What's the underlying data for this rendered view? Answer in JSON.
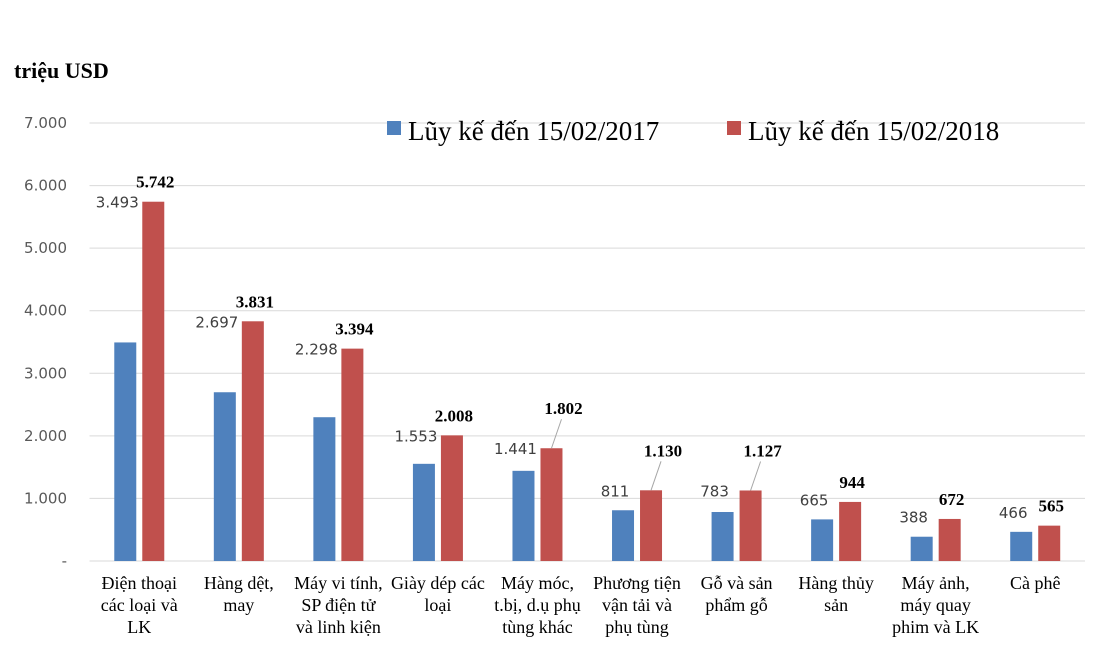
{
  "chart_data": {
    "type": "bar",
    "unit_label": "triệu USD",
    "ylim": [
      0,
      7000
    ],
    "yticks": [
      0,
      1000,
      2000,
      3000,
      4000,
      5000,
      6000,
      7000
    ],
    "ytick_labels": [
      "-",
      "1.000",
      "2.000",
      "3.000",
      "4.000",
      "5.000",
      "6.000",
      "7.000"
    ],
    "grid": true,
    "legend_position": "top-right",
    "categories": [
      [
        "Điện thoại",
        "các loại và",
        "LK"
      ],
      [
        "Hàng dệt,",
        "may"
      ],
      [
        "Máy vi tính,",
        "SP điện tử",
        "và linh  kiện"
      ],
      [
        "Giày dép các",
        "loại"
      ],
      [
        "Máy móc,",
        "t.bị, d.ụ phụ",
        "tùng khác"
      ],
      [
        "Phương tiện",
        "vận tải và",
        "phụ tùng"
      ],
      [
        "Gỗ và sản",
        "phẩm gỗ"
      ],
      [
        "Hàng thủy",
        "sản"
      ],
      [
        "Máy ảnh,",
        "máy quay",
        "phim và LK"
      ],
      [
        "Cà phê"
      ]
    ],
    "series": [
      {
        "name": "Lũy kế đến 15/02/2017",
        "color": "#4f81bd",
        "values": [
          3493,
          2697,
          2298,
          1553,
          1441,
          811,
          783,
          665,
          388,
          466
        ],
        "labels": [
          "3.493",
          "2.697",
          "2.298",
          "1.553",
          "1.441",
          "811",
          "783",
          "665",
          "388",
          "466"
        ]
      },
      {
        "name": "Lũy kế đến 15/02/2018",
        "color": "#c0504d",
        "values": [
          5742,
          3831,
          3394,
          2008,
          1802,
          1130,
          1127,
          944,
          672,
          565
        ],
        "labels": [
          "5.742",
          "3.831",
          "3.394",
          "2.008",
          "1.802",
          "1.130",
          "1.127",
          "944",
          "672",
          "565"
        ]
      }
    ]
  }
}
